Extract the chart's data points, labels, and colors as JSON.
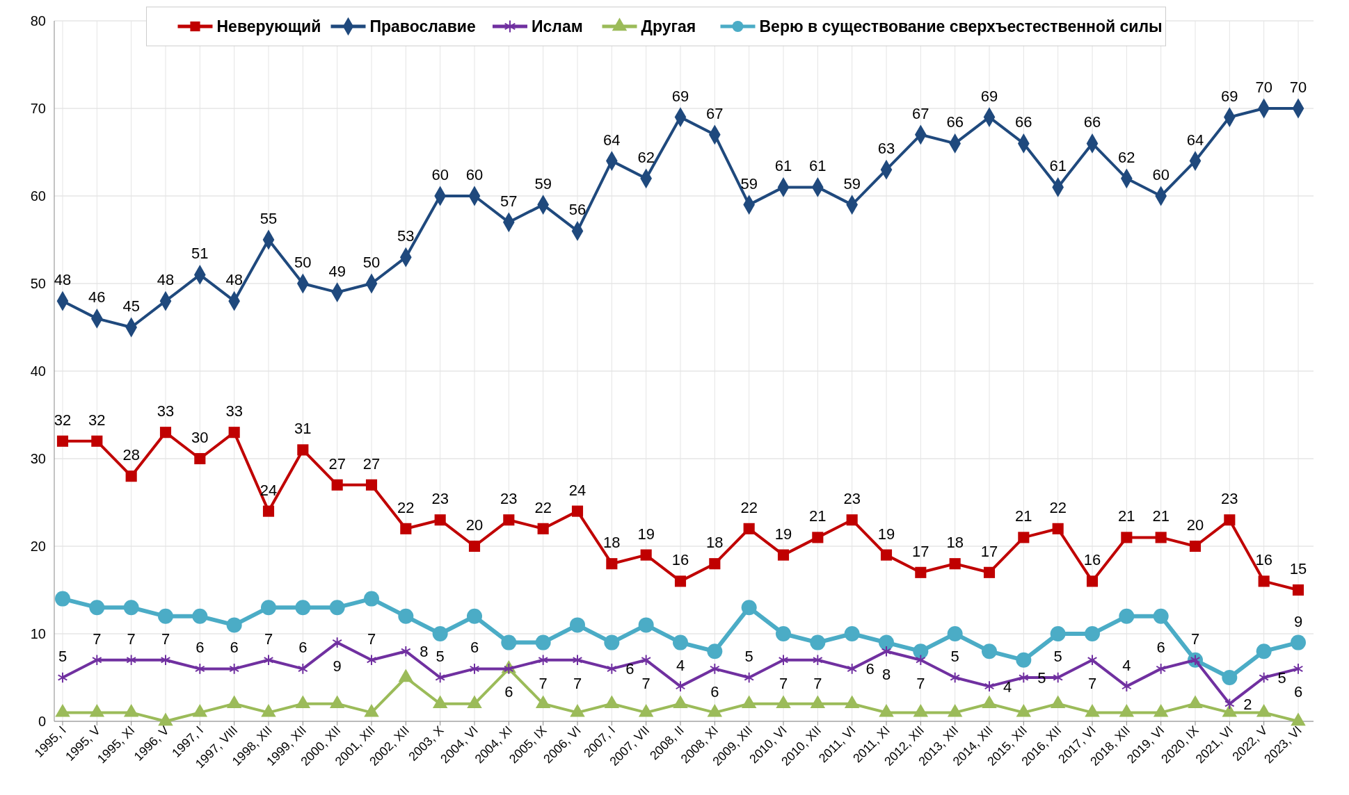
{
  "chart_data": {
    "type": "line",
    "categories": [
      "1995, I",
      "1995, V",
      "1995, XI",
      "1996, V",
      "1997, I",
      "1997, VIII",
      "1998, XII",
      "1999, XII",
      "2000, XII",
      "2001, XII",
      "2002, XII",
      "2003, X",
      "2004, VI",
      "2004, XI",
      "2005, IX",
      "2006, VI",
      "2007, I",
      "2007, VII",
      "2008, II",
      "2008, XI",
      "2009, XII",
      "2010, VI",
      "2010, XII",
      "2011, VI",
      "2011, XI",
      "2012, XII",
      "2013, XII",
      "2014, XII",
      "2015, XII",
      "2016, XII",
      "2017, VI",
      "2018, XII",
      "2019, VI",
      "2020, IX",
      "2021, VI",
      "2022, V",
      "2023, VI"
    ],
    "ylim": [
      0,
      80
    ],
    "yticks": [
      0,
      10,
      20,
      30,
      40,
      50,
      60,
      70,
      80
    ],
    "grid": true,
    "legend": "top",
    "series": [
      {
        "name": "Неверующий",
        "color": "#c00000",
        "marker": "square",
        "values": [
          32,
          32,
          28,
          33,
          30,
          33,
          24,
          31,
          27,
          27,
          22,
          23,
          20,
          23,
          22,
          24,
          18,
          19,
          16,
          18,
          22,
          19,
          21,
          23,
          19,
          17,
          18,
          17,
          21,
          22,
          16,
          21,
          21,
          20,
          23,
          16,
          15
        ],
        "value_labels": [
          "32",
          "32",
          "28",
          "33",
          "30",
          "33",
          "24",
          "31",
          "27",
          "27",
          "22",
          "23",
          "20",
          "23",
          "22",
          "24",
          "18",
          "19",
          "16",
          "18",
          "22",
          "19",
          "21",
          "23",
          "19",
          "17",
          "18",
          "17",
          "21",
          "22",
          "16",
          "21",
          "21",
          "20",
          "23",
          "16",
          "15"
        ]
      },
      {
        "name": "Православие",
        "color": "#1f497d",
        "marker": "diamond",
        "values": [
          48,
          46,
          45,
          48,
          51,
          48,
          55,
          50,
          49,
          50,
          53,
          60,
          60,
          57,
          59,
          56,
          64,
          62,
          69,
          67,
          59,
          61,
          61,
          59,
          63,
          67,
          66,
          69,
          66,
          61,
          66,
          62,
          60,
          64,
          69,
          70,
          70
        ],
        "value_labels": [
          "48",
          "46",
          "45",
          "48",
          "51",
          "48",
          "55",
          "50",
          "49",
          "50",
          "53",
          "60",
          "60",
          "57",
          "59",
          "56",
          "64",
          "62",
          "69",
          "67",
          "59",
          "61",
          "61",
          "59",
          "63",
          "67",
          "66",
          "69",
          "66",
          "61",
          "66",
          "62",
          "60",
          "64",
          "69",
          "70",
          "70"
        ]
      },
      {
        "name": "Ислам",
        "color": "#7030a0",
        "marker": "cross",
        "values": [
          5,
          7,
          7,
          7,
          6,
          6,
          7,
          6,
          9,
          7,
          8,
          5,
          6,
          6,
          7,
          7,
          6,
          7,
          4,
          6,
          5,
          7,
          7,
          6,
          8,
          7,
          5,
          4,
          5,
          5,
          7,
          4,
          6,
          7,
          2,
          5,
          6
        ],
        "value_labels": [
          "5",
          "7",
          "7",
          "7",
          "6",
          "6",
          "7",
          "6",
          "9",
          "7",
          "8",
          "5",
          "6",
          "6",
          "7",
          "7",
          "6",
          "7",
          "4",
          "6",
          "5",
          "7",
          "7",
          "6",
          "8",
          "7",
          "5",
          "4",
          "5",
          "5",
          "7",
          "4",
          "6",
          "7",
          "2",
          "5",
          "6"
        ]
      },
      {
        "name": "Другая",
        "color": "#9bbb59",
        "marker": "triangle",
        "values": [
          1,
          1,
          1,
          0,
          1,
          2,
          1,
          2,
          2,
          1,
          5,
          2,
          2,
          6,
          2,
          1,
          2,
          1,
          2,
          1,
          2,
          2,
          2,
          2,
          1,
          1,
          1,
          2,
          1,
          2,
          1,
          1,
          1,
          2,
          1,
          1,
          0
        ]
      },
      {
        "name": "Верю в существование сверхъестественной силы",
        "color": "#4bacc6",
        "marker": "circle",
        "values": [
          14,
          13,
          13,
          12,
          12,
          11,
          13,
          13,
          13,
          14,
          12,
          10,
          12,
          9,
          9,
          11,
          9,
          11,
          9,
          8,
          13,
          10,
          9,
          10,
          9,
          8,
          10,
          8,
          7,
          10,
          10,
          12,
          12,
          7,
          5,
          8,
          9
        ],
        "value_labels": [
          null,
          null,
          null,
          null,
          null,
          null,
          null,
          null,
          null,
          null,
          null,
          null,
          null,
          null,
          null,
          null,
          null,
          null,
          null,
          null,
          null,
          null,
          null,
          null,
          null,
          null,
          null,
          null,
          null,
          null,
          null,
          null,
          null,
          null,
          null,
          null,
          "9"
        ]
      }
    ]
  }
}
